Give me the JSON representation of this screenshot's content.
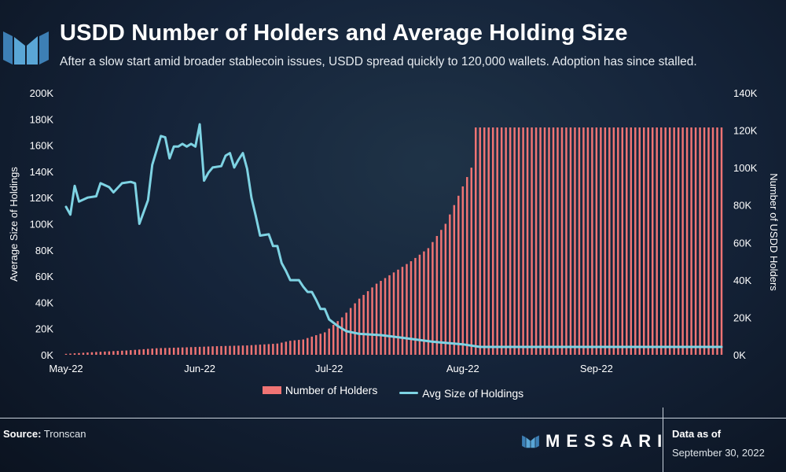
{
  "header": {
    "title": "USDD Number of Holders and Average Holding Size",
    "subtitle": "After a slow start amid broader stablecoin issues, USDD spread quickly to 120,000 wallets. Adoption has since stalled."
  },
  "legend": {
    "holders": "Number of Holders",
    "avg": "Avg Size of Holdings"
  },
  "footer": {
    "source_label": "Source:",
    "source_value": "Tronscan",
    "brand": "MESSARI",
    "asof_label": "Data as of",
    "asof_date": "September 30, 2022"
  },
  "colors": {
    "bars": "#f07474",
    "line": "#7ed3e3",
    "text": "#ffffff"
  },
  "chart_data": {
    "type": "bar+line",
    "x_range": [
      "2022-05-01",
      "2022-09-30"
    ],
    "x_ticks": [
      "May-22",
      "Jun-22",
      "Jul-22",
      "Aug-22",
      "Sep-22"
    ],
    "y_left": {
      "label": "Average Size of Holdings",
      "range": [
        0,
        200000
      ],
      "ticks": [
        "0K",
        "20K",
        "40K",
        "60K",
        "80K",
        "100K",
        "120K",
        "140K",
        "160K",
        "180K",
        "200K"
      ]
    },
    "y_right": {
      "label": "Number of USDD Holders",
      "range": [
        0,
        140000
      ],
      "ticks": [
        "0K",
        "20K",
        "40K",
        "60K",
        "80K",
        "100K",
        "120K",
        "140K"
      ]
    },
    "holders_series": {
      "name": "Number of Holders",
      "axis": "right",
      "points": [
        [
          "2022-05-01",
          500
        ],
        [
          "2022-05-08",
          1500
        ],
        [
          "2022-05-15",
          2300
        ],
        [
          "2022-05-22",
          3500
        ],
        [
          "2022-05-29",
          4000
        ],
        [
          "2022-06-05",
          4600
        ],
        [
          "2022-06-12",
          5000
        ],
        [
          "2022-06-19",
          6000
        ],
        [
          "2022-06-22",
          7500
        ],
        [
          "2022-06-25",
          8200
        ],
        [
          "2022-06-30",
          12000
        ],
        [
          "2022-07-04",
          20000
        ],
        [
          "2022-07-08",
          30000
        ],
        [
          "2022-07-12",
          38000
        ],
        [
          "2022-07-16",
          44000
        ],
        [
          "2022-07-20",
          50000
        ],
        [
          "2022-07-24",
          57000
        ],
        [
          "2022-07-28",
          70000
        ],
        [
          "2022-08-01",
          90000
        ],
        [
          "2022-08-03",
          100000
        ],
        [
          "2022-08-04",
          121500
        ],
        [
          "2022-09-30",
          121500
        ]
      ]
    },
    "avg_series": {
      "name": "Avg Size of Holdings",
      "axis": "left",
      "points": [
        [
          "2022-05-01",
          113000
        ],
        [
          "2022-05-02",
          107000
        ],
        [
          "2022-05-03",
          129000
        ],
        [
          "2022-05-04",
          117000
        ],
        [
          "2022-05-06",
          120000
        ],
        [
          "2022-05-08",
          121000
        ],
        [
          "2022-05-09",
          131000
        ],
        [
          "2022-05-11",
          128000
        ],
        [
          "2022-05-12",
          124000
        ],
        [
          "2022-05-14",
          131000
        ],
        [
          "2022-05-16",
          132000
        ],
        [
          "2022-05-17",
          131000
        ],
        [
          "2022-05-18",
          100000
        ],
        [
          "2022-05-20",
          118000
        ],
        [
          "2022-05-21",
          145000
        ],
        [
          "2022-05-23",
          167000
        ],
        [
          "2022-05-24",
          166000
        ],
        [
          "2022-05-25",
          150000
        ],
        [
          "2022-05-26",
          159000
        ],
        [
          "2022-05-27",
          159000
        ],
        [
          "2022-05-28",
          161000
        ],
        [
          "2022-05-29",
          159000
        ],
        [
          "2022-05-30",
          161000
        ],
        [
          "2022-05-31",
          159000
        ],
        [
          "2022-06-01",
          176000
        ],
        [
          "2022-06-02",
          133000
        ],
        [
          "2022-06-03",
          139000
        ],
        [
          "2022-06-04",
          143000
        ],
        [
          "2022-06-06",
          144000
        ],
        [
          "2022-06-07",
          152000
        ],
        [
          "2022-06-08",
          154000
        ],
        [
          "2022-06-09",
          143000
        ],
        [
          "2022-06-10",
          149000
        ],
        [
          "2022-06-11",
          154000
        ],
        [
          "2022-06-12",
          142000
        ],
        [
          "2022-06-13",
          120000
        ],
        [
          "2022-06-14",
          106000
        ],
        [
          "2022-06-15",
          91000
        ],
        [
          "2022-06-17",
          92000
        ],
        [
          "2022-06-18",
          83000
        ],
        [
          "2022-06-19",
          83000
        ],
        [
          "2022-06-20",
          70000
        ],
        [
          "2022-06-21",
          64000
        ],
        [
          "2022-06-22",
          57000
        ],
        [
          "2022-06-24",
          57000
        ],
        [
          "2022-06-25",
          52000
        ],
        [
          "2022-06-26",
          48000
        ],
        [
          "2022-06-27",
          48000
        ],
        [
          "2022-06-28",
          42000
        ],
        [
          "2022-06-29",
          35000
        ],
        [
          "2022-06-30",
          35000
        ],
        [
          "2022-07-01",
          27000
        ],
        [
          "2022-07-03",
          22000
        ],
        [
          "2022-07-05",
          18000
        ],
        [
          "2022-07-08",
          16000
        ],
        [
          "2022-07-13",
          15000
        ],
        [
          "2022-07-18",
          13000
        ],
        [
          "2022-07-25",
          10000
        ],
        [
          "2022-08-01",
          8000
        ],
        [
          "2022-08-05",
          6000
        ],
        [
          "2022-09-30",
          6000
        ]
      ]
    }
  }
}
